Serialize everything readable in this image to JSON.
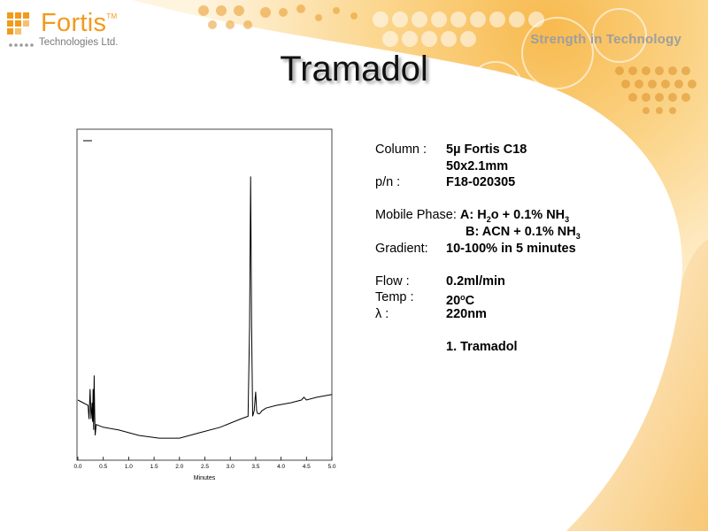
{
  "brand": {
    "name": "Fortis",
    "tm": "TM",
    "subtitle": "Technologies Ltd.",
    "tagline": "Strength in Technology",
    "accent_color": "#f29a1c"
  },
  "slide": {
    "title": "Tramadol"
  },
  "method": {
    "column_label": "Column :",
    "column_value": "5µ Fortis C18",
    "column_dims": "50x2.1mm",
    "pn_label": "p/n :",
    "pn_value": "F18-020305",
    "mobile_phase_label": "Mobile Phase:",
    "mobile_a_prefix": "A: H",
    "mobile_a_sub": "2",
    "mobile_a_mid": "o + 0.1% NH",
    "mobile_a_sub2": "3",
    "mobile_b_prefix": "B: ACN + 0.1% NH",
    "mobile_b_sub": "3",
    "gradient_label": "Gradient:",
    "gradient_value": "10-100% in 5 minutes",
    "flow_label": "Flow :",
    "flow_value": "0.2ml/min",
    "temp_label": "Temp :",
    "temp_value_num": "20",
    "temp_value_deg": "o",
    "temp_value_unit": "C",
    "lambda_label": "λ :",
    "lambda_value": "220nm",
    "peak_list": "1. Tramadol"
  },
  "chart_data": {
    "type": "line",
    "title": "",
    "xlabel": "Minutes",
    "ylabel": "",
    "xlim": [
      0.0,
      5.0
    ],
    "x_ticks": [
      "0.0",
      "0.5",
      "1.0",
      "1.5",
      "2.0",
      "2.5",
      "3.0",
      "3.5",
      "4.0",
      "4.5",
      "5.0"
    ],
    "series": [
      {
        "x": [
          0.0,
          0.1,
          0.2,
          0.22,
          0.24,
          0.26,
          0.28,
          0.29,
          0.3,
          0.31,
          0.32,
          0.33,
          0.34,
          0.36,
          0.5,
          0.8,
          1.2,
          1.6,
          2.0,
          2.4,
          2.8,
          3.2,
          3.35,
          3.38,
          3.4,
          3.42,
          3.44,
          3.47,
          3.5,
          3.52,
          3.54,
          3.56,
          3.58,
          3.62,
          3.7,
          3.9,
          4.2,
          4.4,
          4.45,
          4.5,
          4.7,
          5.0
        ],
        "y": [
          0.13,
          0.12,
          0.11,
          0.06,
          0.17,
          0.06,
          0.12,
          0.05,
          0.17,
          0.02,
          0.22,
          0.1,
          0.0,
          0.04,
          0.03,
          0.02,
          0.0,
          -0.01,
          -0.01,
          0.01,
          0.03,
          0.06,
          0.07,
          0.4,
          0.95,
          0.4,
          0.07,
          0.09,
          0.16,
          0.09,
          0.08,
          0.08,
          0.08,
          0.09,
          0.1,
          0.11,
          0.12,
          0.13,
          0.14,
          0.13,
          0.14,
          0.15
        ]
      }
    ],
    "grid": false,
    "legend": "none",
    "line_color": "#000000"
  }
}
